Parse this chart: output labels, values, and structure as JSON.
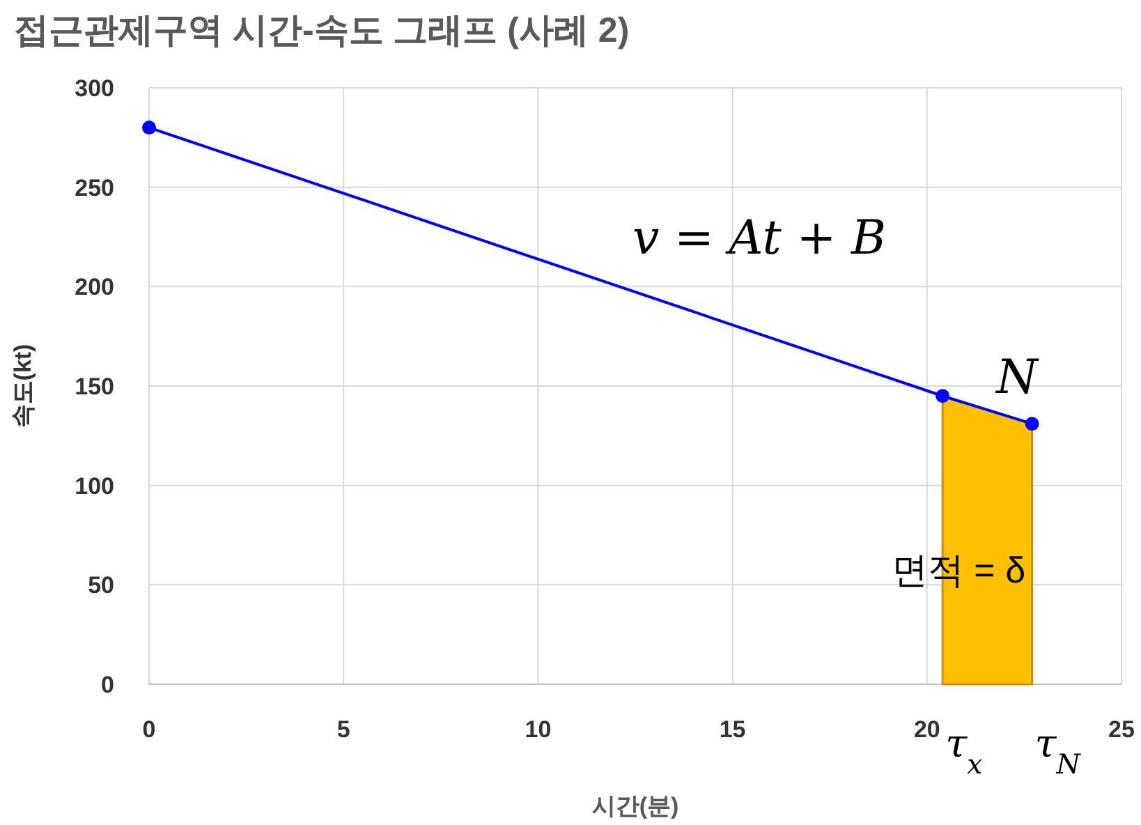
{
  "chart_data": {
    "type": "line",
    "title": "접근관제구역 시간-속도 그래프 (사례 2)",
    "xlabel": "시간(분)",
    "ylabel": "속도(kt)",
    "xlim": [
      0,
      25
    ],
    "xticks": [
      0,
      5,
      10,
      15,
      20,
      25
    ],
    "ylim": [
      0,
      300
    ],
    "yticks": [
      0,
      50,
      100,
      150,
      200,
      250,
      300
    ],
    "grid": true,
    "series": [
      {
        "type": "area",
        "color": "#ffc000",
        "x": [
          20.4,
          22.7
        ],
        "values": [
          145,
          131
        ]
      },
      {
        "color": "#0000ff",
        "marker": "circle",
        "x": [
          0,
          20.4,
          22.7
        ],
        "values": [
          280,
          145,
          131
        ]
      }
    ],
    "annotations": [
      "v = At + B",
      "N",
      "면적 = δ",
      {
        "text": "τ$_{x}$",
        "x": 20.4,
        "y": 0
      },
      {
        "text": "τ$_{N}$",
        "x": 22.7,
        "y": 0
      }
    ]
  }
}
